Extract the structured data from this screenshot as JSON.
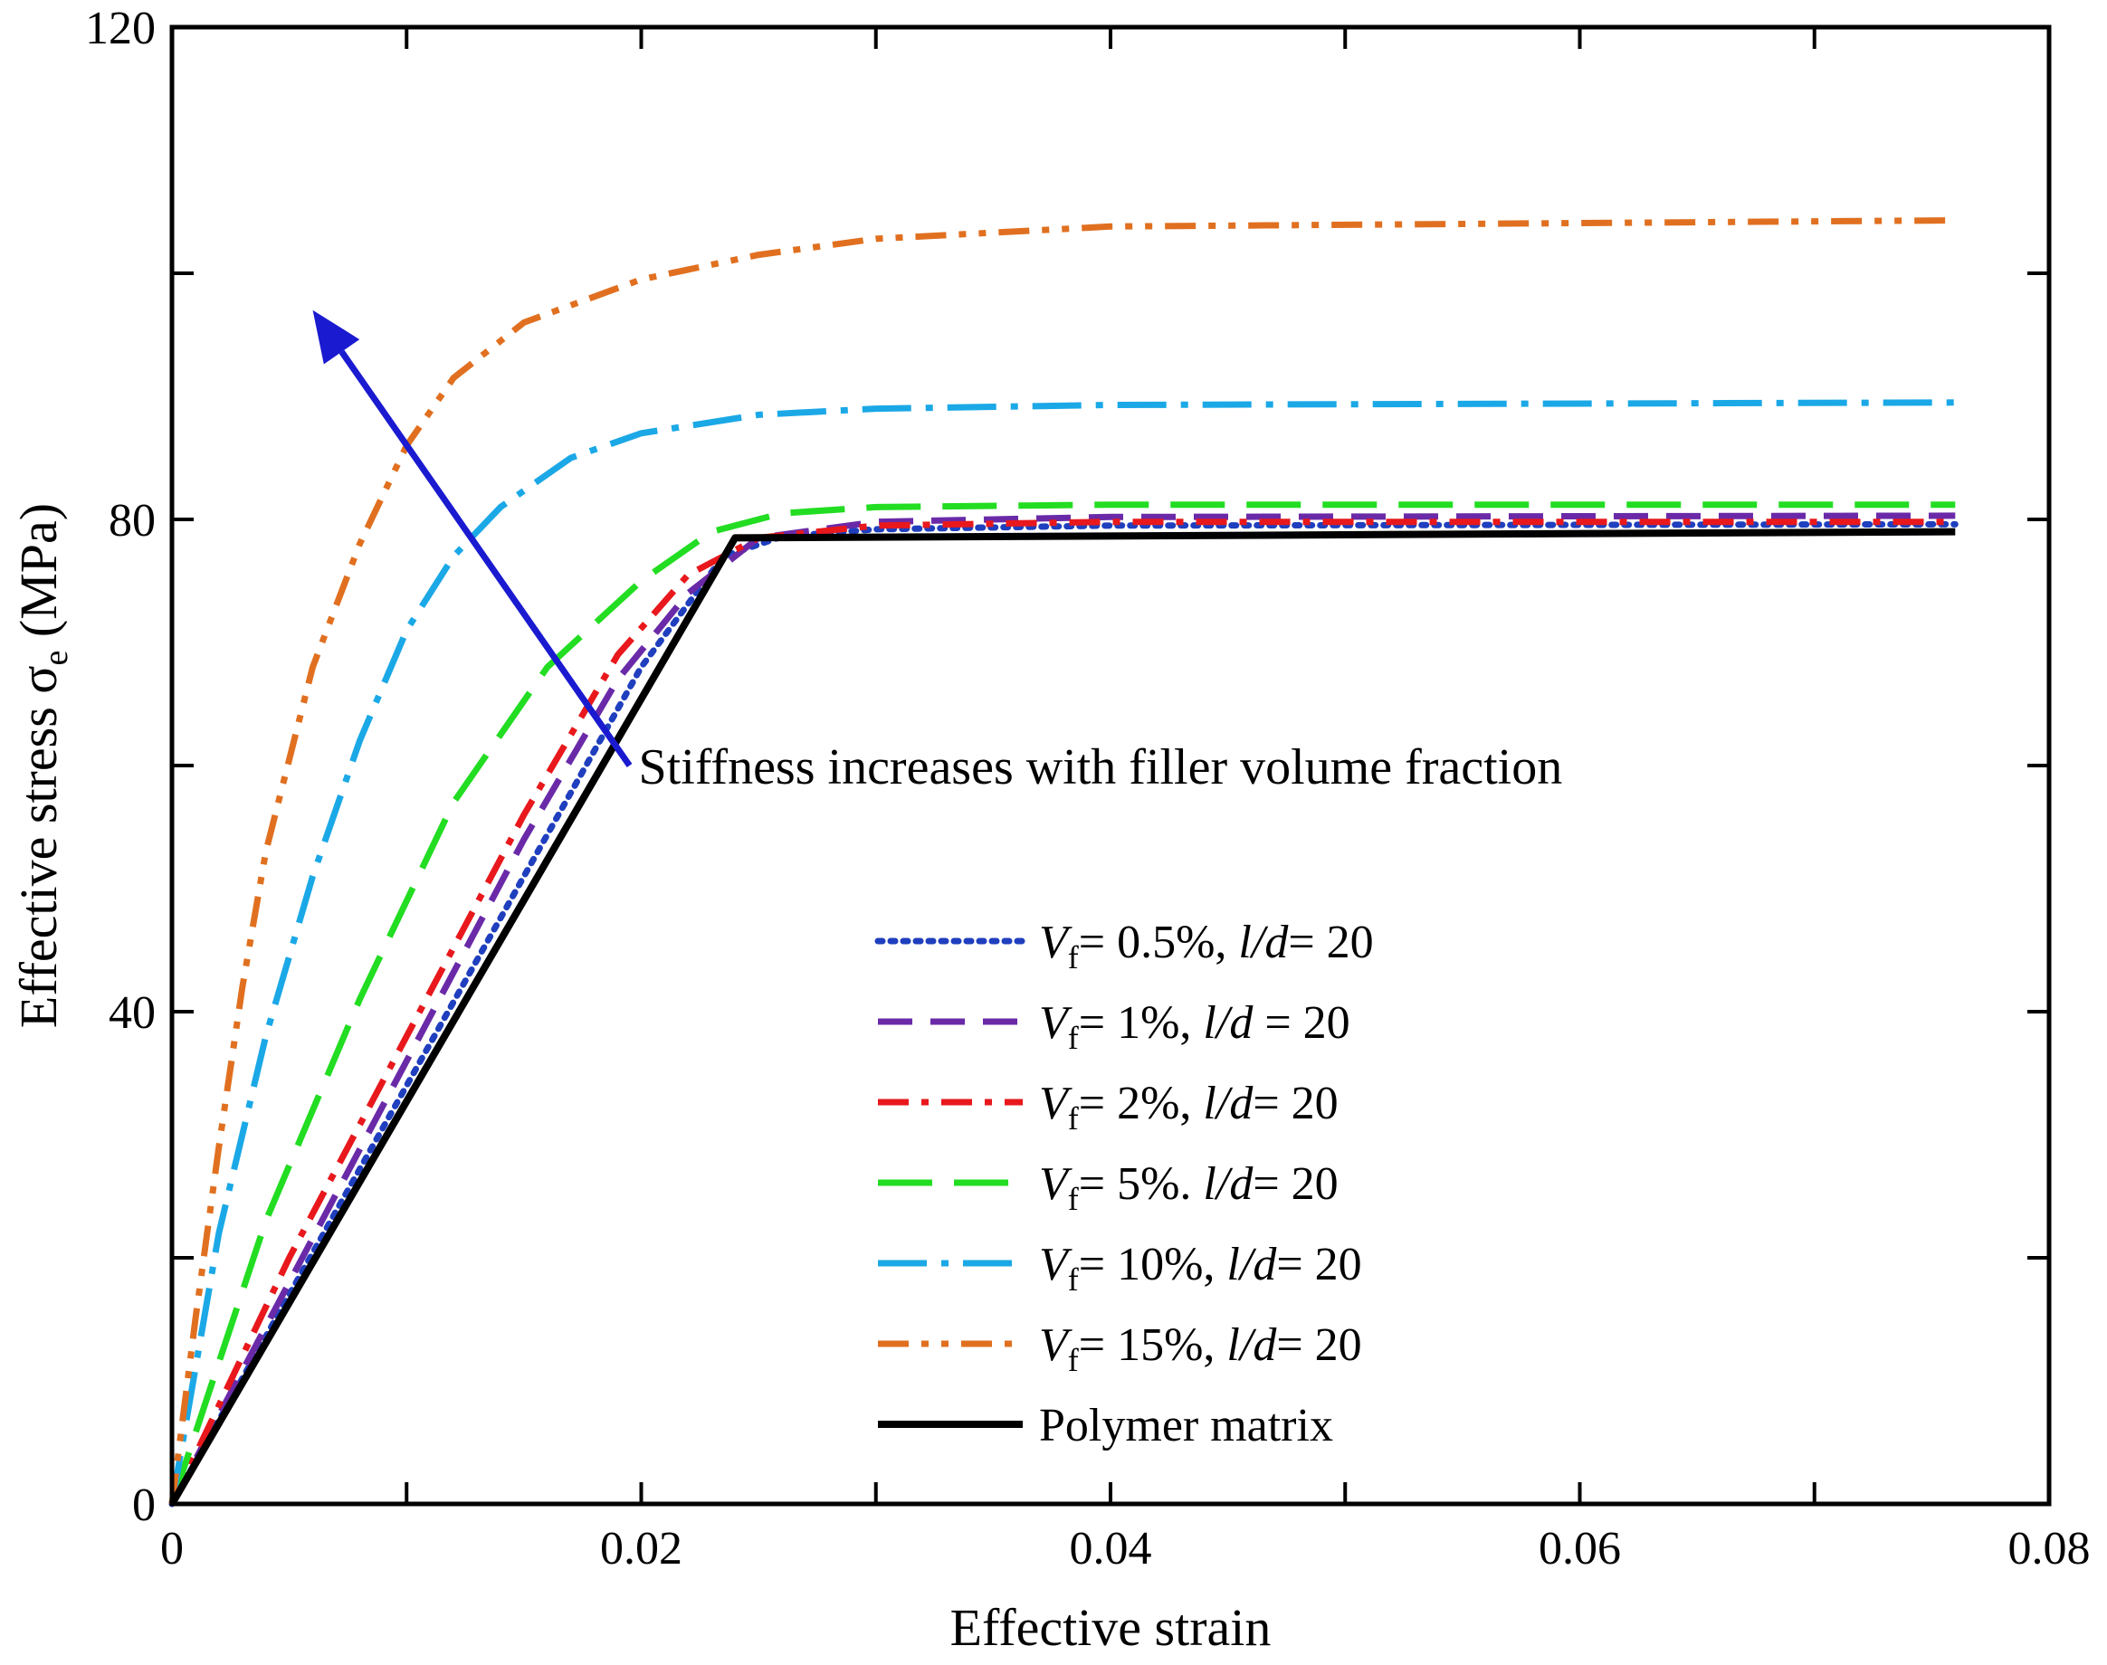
{
  "chart_data": {
    "type": "line",
    "title": "",
    "xlabel": "Effective strain",
    "ylabel": "Effective stress σ",
    "ylabel_sub": "e",
    "ylabel_unit": " (MPa)",
    "xlim": [
      0,
      0.08
    ],
    "ylim": [
      0,
      120
    ],
    "xticks": [
      0,
      0.02,
      0.04,
      0.06,
      0.08
    ],
    "xtick_labels": [
      "0",
      "0.02",
      "0.04",
      "0.06",
      "0.08"
    ],
    "yticks": [
      0,
      40,
      80,
      120
    ],
    "ytick_labels": [
      "0",
      "40",
      "80",
      "120"
    ],
    "grid": false,
    "legend_position": "bottom-right",
    "annotation": {
      "text": "Stiffness increases with filler volume fraction",
      "arrow_from": [
        0.0195,
        60
      ],
      "arrow_to": [
        0.006,
        97
      ]
    },
    "series": [
      {
        "name": "Vf= 0.5%, l/d= 20",
        "legend": {
          "v": "V",
          "sub": "f",
          "rest": "= 0.5%, ",
          "ld": "l/d",
          "tail": "= 20"
        },
        "color": "#1f3fbf",
        "dash": "dotted",
        "points": [
          [
            0,
            0
          ],
          [
            0.005,
            17
          ],
          [
            0.01,
            34
          ],
          [
            0.015,
            51
          ],
          [
            0.02,
            68
          ],
          [
            0.0235,
            77
          ],
          [
            0.026,
            78.6
          ],
          [
            0.03,
            79.2
          ],
          [
            0.04,
            79.5
          ],
          [
            0.076,
            79.6
          ]
        ]
      },
      {
        "name": "Vf= 1%, l/d = 20",
        "legend": {
          "v": "V",
          "sub": "f",
          "rest": "= 1%, ",
          "ld": "l/d",
          "tail": " = 20"
        },
        "color": "#6a2aa8",
        "dash": "dash",
        "points": [
          [
            0,
            0
          ],
          [
            0.005,
            18
          ],
          [
            0.01,
            36
          ],
          [
            0.015,
            54
          ],
          [
            0.019,
            67
          ],
          [
            0.022,
            74
          ],
          [
            0.025,
            78.5
          ],
          [
            0.03,
            79.8
          ],
          [
            0.04,
            80.2
          ],
          [
            0.076,
            80.3
          ]
        ]
      },
      {
        "name": "Vf= 2%, l/d= 20",
        "legend": {
          "v": "V",
          "sub": "f",
          "rest": "= 2%, ",
          "ld": "l/d",
          "tail": "= 20"
        },
        "color": "#e8181c",
        "dash": "dashdot",
        "points": [
          [
            0,
            0
          ],
          [
            0.005,
            20
          ],
          [
            0.01,
            38
          ],
          [
            0.015,
            56
          ],
          [
            0.019,
            69
          ],
          [
            0.022,
            75.5
          ],
          [
            0.025,
            78.5
          ],
          [
            0.03,
            79.5
          ],
          [
            0.04,
            79.8
          ],
          [
            0.076,
            79.8
          ]
        ]
      },
      {
        "name": "Vf= 5%. l/d= 20",
        "legend": {
          "v": "V",
          "sub": "f",
          "rest": "= 5%. ",
          "ld": "l/d",
          "tail": "= 20"
        },
        "color": "#22dd22",
        "dash": "longdash",
        "points": [
          [
            0,
            0
          ],
          [
            0.004,
            23
          ],
          [
            0.008,
            41
          ],
          [
            0.012,
            57
          ],
          [
            0.016,
            68
          ],
          [
            0.02,
            75
          ],
          [
            0.023,
            79
          ],
          [
            0.026,
            80.5
          ],
          [
            0.03,
            81
          ],
          [
            0.04,
            81.2
          ],
          [
            0.076,
            81.2
          ]
        ]
      },
      {
        "name": "Vf= 10%, l/d= 20",
        "legend": {
          "v": "V",
          "sub": "f",
          "rest": "= 10%, ",
          "ld": "l/d",
          "tail": "= 20"
        },
        "color": "#1ba8e6",
        "dash": "longdashdot",
        "points": [
          [
            0,
            0
          ],
          [
            0.002,
            22
          ],
          [
            0.004,
            38
          ],
          [
            0.006,
            51
          ],
          [
            0.008,
            62
          ],
          [
            0.01,
            71
          ],
          [
            0.012,
            77
          ],
          [
            0.014,
            81
          ],
          [
            0.017,
            85
          ],
          [
            0.02,
            87
          ],
          [
            0.025,
            88.5
          ],
          [
            0.03,
            89
          ],
          [
            0.04,
            89.3
          ],
          [
            0.076,
            89.5
          ]
        ]
      },
      {
        "name": "Vf= 15%, l/d= 20",
        "legend": {
          "v": "V",
          "sub": "f",
          "rest": "= 15%, ",
          "ld": "l/d",
          "tail": "= 20"
        },
        "color": "#e07020",
        "dash": "dashdotdot",
        "points": [
          [
            0,
            0
          ],
          [
            0.001,
            15
          ],
          [
            0.002,
            29
          ],
          [
            0.003,
            42
          ],
          [
            0.004,
            53
          ],
          [
            0.006,
            68
          ],
          [
            0.008,
            78
          ],
          [
            0.01,
            86
          ],
          [
            0.012,
            91.5
          ],
          [
            0.015,
            96
          ],
          [
            0.02,
            99.5
          ],
          [
            0.025,
            101.5
          ],
          [
            0.03,
            102.8
          ],
          [
            0.04,
            103.8
          ],
          [
            0.076,
            104.3
          ]
        ]
      },
      {
        "name": "Polymer matrix",
        "legend": {
          "v": "",
          "sub": "",
          "rest": "Polymer matrix",
          "ld": "",
          "tail": ""
        },
        "color": "#000000",
        "dash": "solid",
        "points": [
          [
            0,
            0
          ],
          [
            0.024,
            78.5
          ],
          [
            0.076,
            79
          ]
        ]
      }
    ]
  }
}
